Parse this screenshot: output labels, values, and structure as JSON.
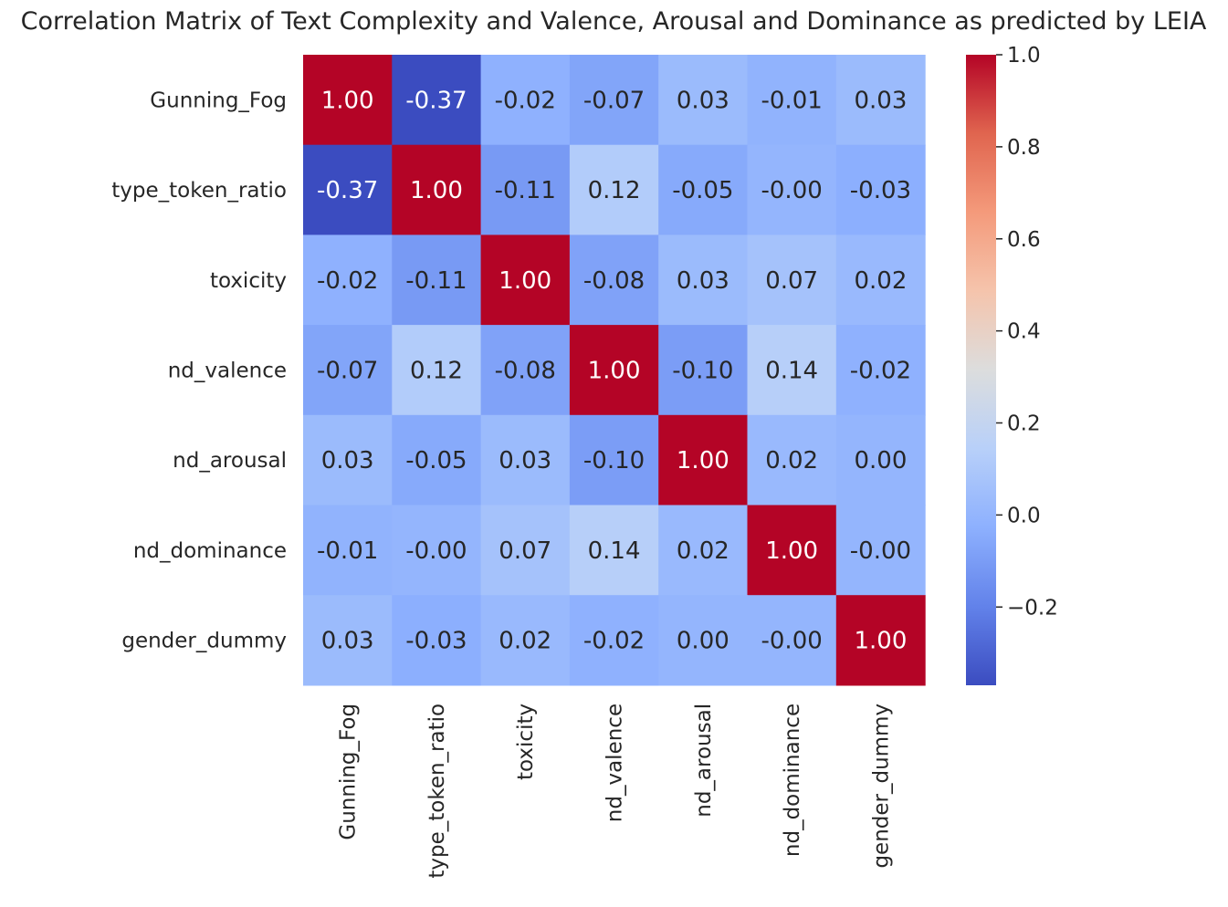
{
  "chart_data": {
    "type": "heatmap",
    "title": "Correlation Matrix of Text Complexity and Valence, Arousal and Dominance as predicted by LEIA",
    "xlabel": "",
    "ylabel": "",
    "row_labels": [
      "Gunning_Fog",
      "type_token_ratio",
      "toxicity",
      "nd_valence",
      "nd_arousal",
      "nd_dominance",
      "gender_dummy"
    ],
    "col_labels": [
      "Gunning_Fog",
      "type_token_ratio",
      "toxicity",
      "nd_valence",
      "nd_arousal",
      "nd_dominance",
      "gender_dummy"
    ],
    "values": [
      [
        1.0,
        -0.37,
        -0.02,
        -0.07,
        0.03,
        -0.01,
        0.03
      ],
      [
        -0.37,
        1.0,
        -0.11,
        0.12,
        -0.05,
        -0.0,
        -0.03
      ],
      [
        -0.02,
        -0.11,
        1.0,
        -0.08,
        0.03,
        0.07,
        0.02
      ],
      [
        -0.07,
        0.12,
        -0.08,
        1.0,
        -0.1,
        0.14,
        -0.02
      ],
      [
        0.03,
        -0.05,
        0.03,
        -0.1,
        1.0,
        0.02,
        0.0
      ],
      [
        -0.01,
        -0.0,
        0.07,
        0.14,
        0.02,
        1.0,
        -0.0
      ],
      [
        0.03,
        -0.03,
        0.02,
        -0.02,
        0.0,
        -0.0,
        1.0
      ]
    ],
    "cell_labels": [
      [
        "1.00",
        "-0.37",
        "-0.02",
        "-0.07",
        "0.03",
        "-0.01",
        "0.03"
      ],
      [
        "-0.37",
        "1.00",
        "-0.11",
        "0.12",
        "-0.05",
        "-0.00",
        "-0.03"
      ],
      [
        "-0.02",
        "-0.11",
        "1.00",
        "-0.08",
        "0.03",
        "0.07",
        "0.02"
      ],
      [
        "-0.07",
        "0.12",
        "-0.08",
        "1.00",
        "-0.10",
        "0.14",
        "-0.02"
      ],
      [
        "0.03",
        "-0.05",
        "0.03",
        "-0.10",
        "1.00",
        "0.02",
        "0.00"
      ],
      [
        "-0.01",
        "-0.00",
        "0.07",
        "0.14",
        "0.02",
        "1.00",
        "-0.00"
      ],
      [
        "0.03",
        "-0.03",
        "0.02",
        "-0.02",
        "0.00",
        "-0.00",
        "1.00"
      ]
    ],
    "colormap": "coolwarm",
    "colormap_stops": [
      "#3b4cc0",
      "#6282ea",
      "#8db0fe",
      "#b8d0f9",
      "#dcdddd",
      "#f5c4ac",
      "#f49a7b",
      "#e0654f",
      "#b40426"
    ],
    "vmin": -0.37,
    "vmax": 1.0,
    "colorbar_ticks": [
      {
        "value": -0.2,
        "label": "−0.2"
      },
      {
        "value": 0.0,
        "label": "0.0"
      },
      {
        "value": 0.2,
        "label": "0.2"
      },
      {
        "value": 0.4,
        "label": "0.4"
      },
      {
        "value": 0.6,
        "label": "0.6"
      },
      {
        "value": 0.8,
        "label": "0.8"
      },
      {
        "value": 1.0,
        "label": "1.0"
      }
    ],
    "grid": false,
    "legend": "colorbar-right"
  }
}
